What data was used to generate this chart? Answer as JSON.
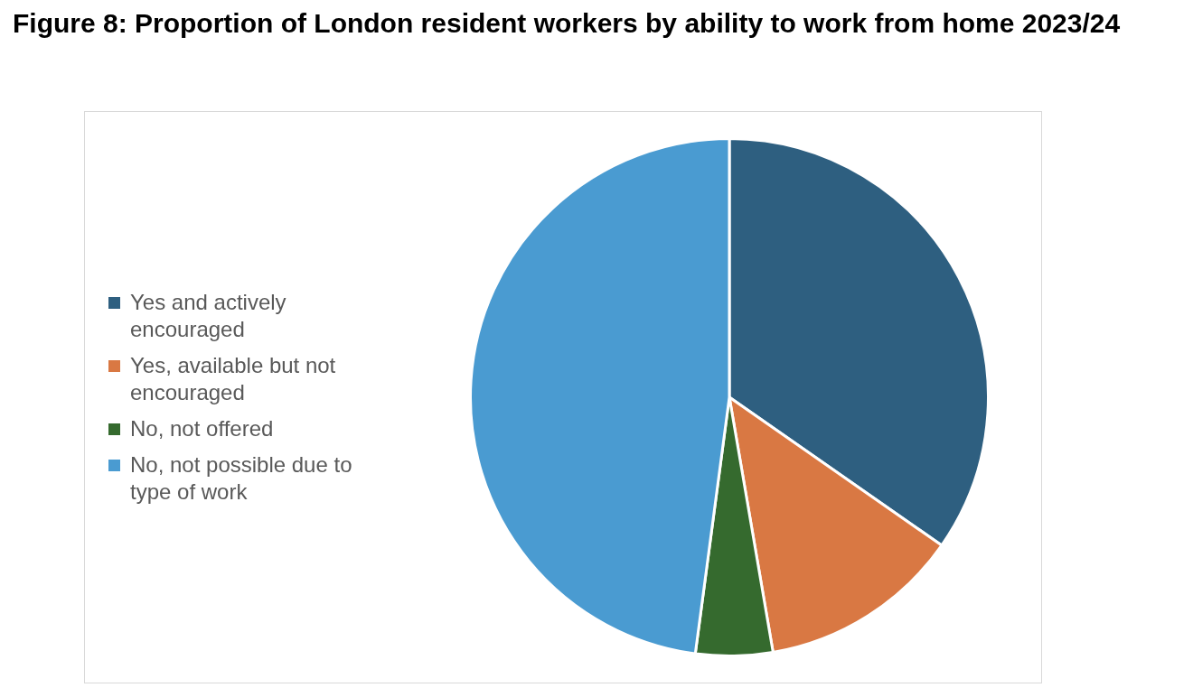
{
  "chart_data": {
    "type": "pie",
    "title": "Figure 8: Proportion of London resident workers by ability to work from home 2023/24",
    "categories": [
      "Yes and actively encouraged",
      "Yes, available but not encouraged",
      "No, not offered",
      "No, not possible due to type of work"
    ],
    "values": [
      34.7,
      12.6,
      4.8,
      47.9
    ],
    "colors": [
      "#2e5f80",
      "#d97843",
      "#356a2e",
      "#4a9bd1"
    ],
    "legend": "left"
  }
}
